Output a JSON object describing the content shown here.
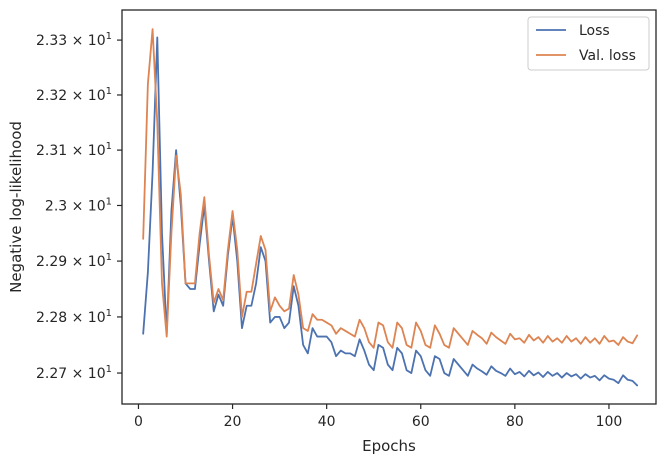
{
  "chart_data": {
    "type": "line",
    "xlabel": "Epochs",
    "ylabel": "Negative log-likelihood",
    "xlim": [
      -3.5,
      110
    ],
    "ylim": [
      22.645,
      23.355
    ],
    "yscale": "log",
    "legend_position": "top-right",
    "x_ticks": [
      0,
      20,
      40,
      60,
      80,
      100
    ],
    "y_ticks": [
      {
        "value": 22.7,
        "label": "2.27 × 10"
      },
      {
        "value": 22.8,
        "label": "2.28 × 10"
      },
      {
        "value": 22.9,
        "label": "2.29 × 10"
      },
      {
        "value": 23.0,
        "label": "2.3 × 10"
      },
      {
        "value": 23.1,
        "label": "2.31 × 10"
      },
      {
        "value": 23.2,
        "label": "2.32 × 10"
      },
      {
        "value": 23.3,
        "label": "2.33 × 10"
      }
    ],
    "y_tick_exponent": "1",
    "series": [
      {
        "name": "Loss",
        "color": "#4c72b0",
        "values": [
          22.77,
          22.88,
          23.06,
          23.305,
          22.95,
          22.77,
          22.99,
          23.1,
          23.0,
          22.86,
          22.85,
          22.85,
          22.93,
          23.0,
          22.9,
          22.81,
          22.84,
          22.82,
          22.91,
          22.98,
          22.9,
          22.78,
          22.82,
          22.82,
          22.86,
          22.925,
          22.9,
          22.79,
          22.8,
          22.8,
          22.78,
          22.79,
          22.855,
          22.82,
          22.75,
          22.735,
          22.78,
          22.765,
          22.765,
          22.765,
          22.755,
          22.73,
          22.74,
          22.735,
          22.735,
          22.73,
          22.76,
          22.74,
          22.715,
          22.705,
          22.75,
          22.745,
          22.715,
          22.705,
          22.745,
          22.735,
          22.705,
          22.7,
          22.74,
          22.73,
          22.705,
          22.695,
          22.73,
          22.725,
          22.7,
          22.695,
          22.725,
          22.715,
          22.705,
          22.695,
          22.715,
          22.708,
          22.703,
          22.697,
          22.712,
          22.704,
          22.7,
          22.695,
          22.708,
          22.698,
          22.702,
          22.694,
          22.704,
          22.696,
          22.701,
          22.693,
          22.702,
          22.695,
          22.7,
          22.692,
          22.7,
          22.694,
          22.698,
          22.69,
          22.698,
          22.692,
          22.695,
          22.687,
          22.696,
          22.69,
          22.688,
          22.682,
          22.696,
          22.688,
          22.686,
          22.678
        ]
      },
      {
        "name": "Val. loss",
        "color": "#dd8452",
        "values": [
          22.94,
          23.22,
          23.32,
          23.15,
          22.86,
          22.765,
          22.95,
          23.09,
          23.02,
          22.86,
          22.86,
          22.86,
          22.95,
          23.015,
          22.91,
          22.825,
          22.85,
          22.83,
          22.92,
          22.99,
          22.92,
          22.8,
          22.845,
          22.845,
          22.895,
          22.945,
          22.92,
          22.81,
          22.835,
          22.82,
          22.81,
          22.815,
          22.875,
          22.84,
          22.78,
          22.775,
          22.805,
          22.795,
          22.795,
          22.79,
          22.785,
          22.77,
          22.78,
          22.775,
          22.77,
          22.765,
          22.795,
          22.78,
          22.755,
          22.745,
          22.79,
          22.785,
          22.755,
          22.745,
          22.79,
          22.78,
          22.75,
          22.745,
          22.79,
          22.775,
          22.75,
          22.745,
          22.785,
          22.77,
          22.75,
          22.745,
          22.78,
          22.77,
          22.76,
          22.75,
          22.775,
          22.768,
          22.762,
          22.752,
          22.772,
          22.764,
          22.758,
          22.752,
          22.77,
          22.76,
          22.762,
          22.754,
          22.768,
          22.758,
          22.764,
          22.754,
          22.766,
          22.756,
          22.762,
          22.754,
          22.766,
          22.756,
          22.762,
          22.752,
          22.764,
          22.754,
          22.762,
          22.752,
          22.766,
          22.756,
          22.758,
          22.75,
          22.764,
          22.756,
          22.753,
          22.767
        ]
      }
    ]
  }
}
